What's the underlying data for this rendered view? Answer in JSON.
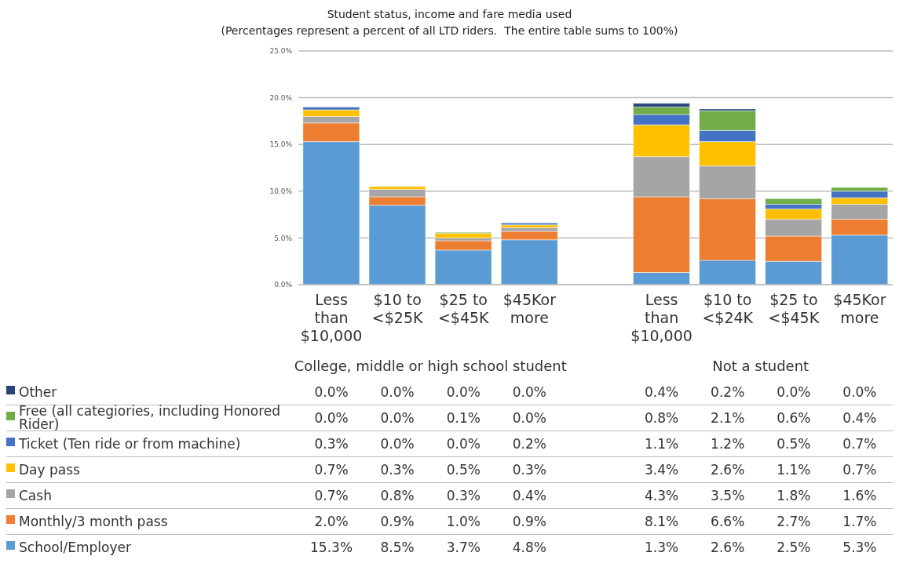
{
  "chart_data": {
    "type": "bar",
    "stacked": true,
    "title": "Student status, income and fare media used",
    "subtitle": "(Percentages represent a percent of all LTD riders.  The entire table sums to 100%)",
    "categories": [
      "Less than $10,000",
      "$10 to <$25K",
      "$25 to <$45K",
      "$45Kor more",
      "Less than $10,000",
      "$10 to <$24K",
      "$25 to <$45K",
      "$45Kor more"
    ],
    "annotations": [
      "College, middle or high school student",
      "Not a student"
    ],
    "series": [
      {
        "name": "School/Employer",
        "color": "#5b9bd5",
        "values": [
          15.3,
          8.5,
          3.7,
          4.8,
          1.3,
          2.6,
          2.5,
          5.3
        ],
        "value_labels": [
          "15.3%",
          "8.5%",
          "3.7%",
          "4.8%",
          "1.3%",
          "2.6%",
          "2.5%",
          "5.3%"
        ]
      },
      {
        "name": "Monthly/3 month pass",
        "color": "#ed7d31",
        "values": [
          2.0,
          0.9,
          1.0,
          0.9,
          8.1,
          6.6,
          2.7,
          1.7
        ],
        "value_labels": [
          "2.0%",
          "0.9%",
          "1.0%",
          "0.9%",
          "8.1%",
          "6.6%",
          "2.7%",
          "1.7%"
        ]
      },
      {
        "name": "Cash",
        "color": "#a5a5a5",
        "values": [
          0.7,
          0.8,
          0.3,
          0.4,
          4.3,
          3.5,
          1.8,
          1.6
        ],
        "value_labels": [
          "0.7%",
          "0.8%",
          "0.3%",
          "0.4%",
          "4.3%",
          "3.5%",
          "1.8%",
          "1.6%"
        ]
      },
      {
        "name": "Day pass",
        "color": "#ffc000",
        "values": [
          0.7,
          0.3,
          0.5,
          0.3,
          3.4,
          2.6,
          1.1,
          0.7
        ],
        "value_labels": [
          "0.7%",
          "0.3%",
          "0.5%",
          "0.3%",
          "3.4%",
          "2.6%",
          "1.1%",
          "0.7%"
        ]
      },
      {
        "name": "Ticket (Ten ride or from machine)",
        "color": "#4472c4",
        "values": [
          0.3,
          0.0,
          0.0,
          0.2,
          1.1,
          1.2,
          0.5,
          0.7
        ],
        "value_labels": [
          "0.3%",
          "0.0%",
          "0.0%",
          "0.2%",
          "1.1%",
          "1.2%",
          "0.5%",
          "0.7%"
        ]
      },
      {
        "name": "Free (all categiories, including Honored Rider)",
        "color": "#70ad47",
        "values": [
          0.0,
          0.0,
          0.1,
          0.0,
          0.8,
          2.1,
          0.6,
          0.4
        ],
        "value_labels": [
          "0.0%",
          "0.0%",
          "0.1%",
          "0.0%",
          "0.8%",
          "2.1%",
          "0.6%",
          "0.4%"
        ]
      },
      {
        "name": "Other",
        "color": "#264478",
        "values": [
          0.0,
          0.0,
          0.0,
          0.0,
          0.4,
          0.2,
          0.0,
          0.0
        ],
        "value_labels": [
          "0.0%",
          "0.0%",
          "0.0%",
          "0.0%",
          "0.4%",
          "0.2%",
          "0.0%",
          "0.0%"
        ]
      }
    ],
    "ylim": [
      0,
      25
    ],
    "yticks": [
      {
        "value": 0,
        "label": "0.0%"
      },
      {
        "value": 5,
        "label": "5.0%"
      },
      {
        "value": 10,
        "label": "10.0%"
      },
      {
        "value": 15,
        "label": "15.0%"
      },
      {
        "value": 20,
        "label": "20.0%"
      },
      {
        "value": 25,
        "label": "25.0%"
      }
    ],
    "grid": "y",
    "legend": "bottom left"
  }
}
